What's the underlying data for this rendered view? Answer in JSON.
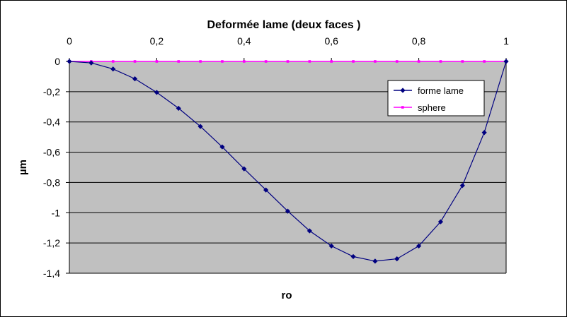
{
  "chart_data": {
    "type": "line",
    "title": "Deformée lame (deux faces )",
    "xlabel": "ro",
    "ylabel": "µm",
    "xlim": [
      0,
      1
    ],
    "ylim": [
      -1.4,
      0
    ],
    "x_ticks": [
      0,
      0.2,
      0.4,
      0.6,
      0.8,
      1
    ],
    "x_tick_labels": [
      "0",
      "0,2",
      "0,4",
      "0,6",
      "0,8",
      "1"
    ],
    "y_ticks": [
      0,
      -0.2,
      -0.4,
      -0.6,
      -0.8,
      -1,
      -1.2,
      -1.4
    ],
    "y_tick_labels": [
      "0",
      "-0,2",
      "-0,4",
      "-0,6",
      "-0,8",
      "-1",
      "-1,2",
      "-1,4"
    ],
    "x_axis_position": "top",
    "grid": "horizontal",
    "plot_background": "#C0C0C0",
    "legend_position": "right",
    "series": [
      {
        "name": "forme lame",
        "color": "#000080",
        "marker": "diamond",
        "x": [
          0,
          0.05,
          0.1,
          0.15,
          0.2,
          0.25,
          0.3,
          0.35,
          0.4,
          0.45,
          0.5,
          0.55,
          0.6,
          0.65,
          0.7,
          0.75,
          0.8,
          0.85,
          0.9,
          0.95,
          1
        ],
        "y": [
          0,
          -0.01,
          -0.05,
          -0.115,
          -0.205,
          -0.31,
          -0.43,
          -0.565,
          -0.71,
          -0.85,
          -0.99,
          -1.12,
          -1.22,
          -1.29,
          -1.32,
          -1.305,
          -1.22,
          -1.06,
          -0.82,
          -0.47,
          0
        ]
      },
      {
        "name": "sphere",
        "color": "#FF00FF",
        "marker": "square",
        "x": [
          0,
          0.05,
          0.1,
          0.15,
          0.2,
          0.25,
          0.3,
          0.35,
          0.4,
          0.45,
          0.5,
          0.55,
          0.6,
          0.65,
          0.7,
          0.75,
          0.8,
          0.85,
          0.9,
          0.95,
          1
        ],
        "y": [
          0,
          0,
          0,
          0,
          0,
          0,
          0,
          0,
          0,
          0,
          0,
          0,
          0,
          0,
          0,
          0,
          0,
          0,
          0,
          0,
          0
        ]
      }
    ]
  }
}
